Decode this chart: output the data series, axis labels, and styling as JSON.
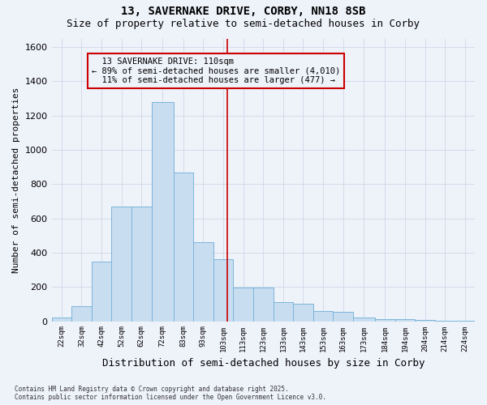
{
  "title_line1": "13, SAVERNAKE DRIVE, CORBY, NN18 8SB",
  "title_line2": "Size of property relative to semi-detached houses in Corby",
  "xlabel": "Distribution of semi-detached houses by size in Corby",
  "ylabel": "Number of semi-detached properties",
  "footer_line1": "Contains HM Land Registry data © Crown copyright and database right 2025.",
  "footer_line2": "Contains public sector information licensed under the Open Government Licence v3.0.",
  "property_label": "13 SAVERNAKE DRIVE: 110sqm",
  "pct_smaller": 89,
  "count_smaller": 4010,
  "pct_larger": 11,
  "count_larger": 477,
  "bin_labels": [
    "22sqm",
    "32sqm",
    "42sqm",
    "52sqm",
    "62sqm",
    "72sqm",
    "83sqm",
    "93sqm",
    "103sqm",
    "113sqm",
    "123sqm",
    "133sqm",
    "143sqm",
    "153sqm",
    "163sqm",
    "173sqm",
    "184sqm",
    "194sqm",
    "204sqm",
    "214sqm",
    "224sqm"
  ],
  "bin_lefts": [
    22,
    32,
    42,
    52,
    62,
    72,
    83,
    93,
    103,
    113,
    123,
    133,
    143,
    153,
    163,
    173,
    184,
    194,
    204,
    214,
    224
  ],
  "bin_rights": [
    32,
    42,
    52,
    62,
    72,
    83,
    93,
    103,
    113,
    123,
    133,
    143,
    153,
    163,
    173,
    184,
    194,
    204,
    214,
    224,
    234
  ],
  "bar_heights": [
    20,
    90,
    350,
    670,
    670,
    1280,
    870,
    460,
    360,
    195,
    195,
    110,
    100,
    60,
    55,
    20,
    10,
    10,
    5,
    2,
    2
  ],
  "bar_color": "#c9ddf0",
  "bar_edge_color": "#7ab5db",
  "vline_x": 110,
  "vline_color": "#cc0000",
  "annotation_box_color": "#cc0000",
  "ylim": [
    0,
    1650
  ],
  "yticks": [
    0,
    200,
    400,
    600,
    800,
    1000,
    1200,
    1400,
    1600
  ],
  "grid_color": "#d0d8e8",
  "bg_color": "#eef2f9",
  "title_fontsize": 10,
  "subtitle_fontsize": 9,
  "ylabel_fontsize": 8,
  "xlabel_fontsize": 9
}
